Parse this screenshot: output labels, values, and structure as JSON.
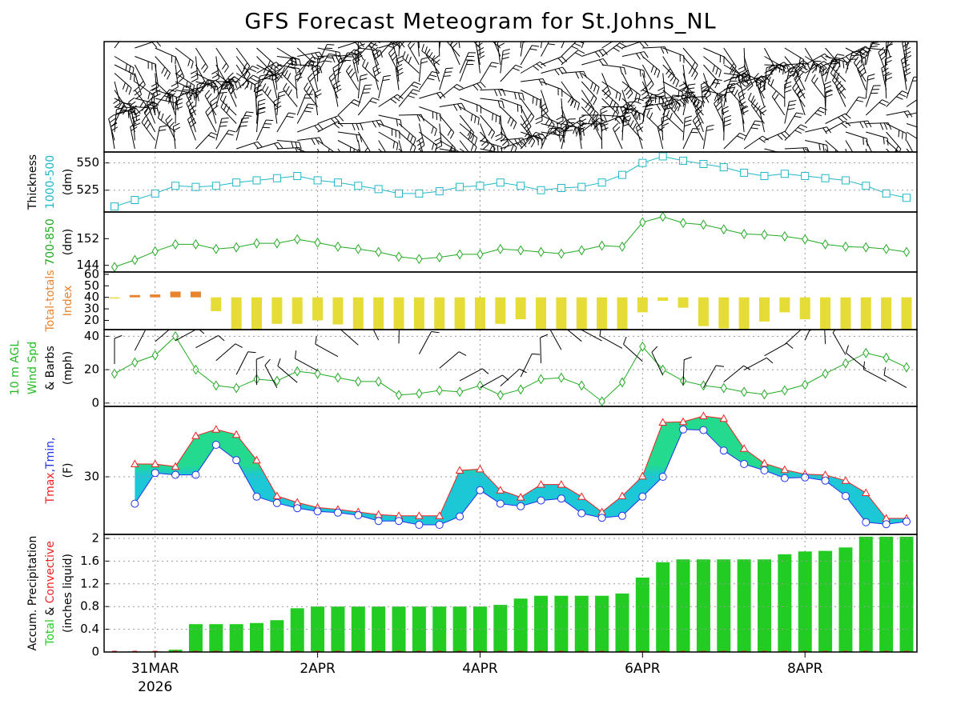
{
  "title": "GFS Forecast Meteogram for St.Johns_NL",
  "chart_data": [
    {
      "type": "line",
      "color": "#20b8c8",
      "marker": "square",
      "ylabel": [
        [
          {
            "text": "Thickness",
            "color": "#000000"
          }
        ],
        [
          {
            "text": "1000-500",
            "color": "#20b8c8"
          }
        ],
        [
          {
            "text": "(dm)",
            "color": "#000000"
          }
        ]
      ],
      "values": [
        510,
        516,
        522,
        529,
        528,
        529,
        532,
        534,
        536,
        538,
        534,
        532,
        529,
        526,
        522,
        522,
        524,
        528,
        529,
        532,
        529,
        525,
        527,
        528,
        532,
        539,
        550,
        556,
        552,
        549,
        546,
        541,
        538,
        540,
        538,
        536,
        534,
        529,
        522,
        518
      ],
      "ylim": [
        505,
        560
      ],
      "yticks": [
        525,
        550
      ],
      "grid": true
    },
    {
      "type": "line",
      "color": "#22aa22",
      "marker": "diamond",
      "ylabel": [
        [
          {
            "text": "700-850",
            "color": "#22aa22"
          }
        ],
        [
          {
            "text": "(dm)",
            "color": "#000000"
          }
        ]
      ],
      "values": [
        143.5,
        145.6,
        148.2,
        150.3,
        150.3,
        148.9,
        149.4,
        150.6,
        150.6,
        151.8,
        150.8,
        149.6,
        148.9,
        148,
        146.6,
        145.9,
        146.4,
        147.3,
        147.3,
        148.9,
        148.5,
        148,
        147.5,
        148.5,
        149.9,
        149.6,
        156.9,
        158.6,
        156.7,
        156.2,
        154.8,
        153.4,
        153.2,
        152.7,
        151.8,
        150.3,
        149.6,
        149.4,
        148.9,
        148
      ],
      "ylim": [
        142,
        160
      ],
      "yticks": [
        144,
        152
      ],
      "grid": false
    },
    {
      "type": "diverging-bar",
      "above_color": "#e8832e",
      "below_color": "#e6dc38",
      "base_color": "#999999",
      "ylabel": [
        [
          {
            "text": "Total-totals",
            "color": "#e8832e"
          }
        ],
        [
          {
            "text": "Index",
            "color": "#e8832e"
          }
        ]
      ],
      "values": [
        39,
        42,
        42.5,
        45,
        45,
        28,
        12,
        12,
        17,
        17,
        20,
        16.5,
        12,
        12,
        12,
        12,
        12,
        12,
        12,
        17,
        21,
        12,
        12,
        12,
        12,
        12,
        27,
        37,
        31,
        15,
        13,
        12,
        19,
        27,
        21,
        12,
        12,
        12,
        12,
        12
      ],
      "ylim": [
        12,
        62
      ],
      "yticks": [
        20,
        30,
        40,
        50,
        60
      ],
      "grid": false
    },
    {
      "type": "line",
      "color": "#22aa22",
      "marker": "diamond",
      "ylabel": [
        [
          {
            "text": "10 m AGL",
            "color": "#22bb22"
          }
        ],
        [
          {
            "text": "Wind Spd",
            "color": "#22bb22"
          }
        ],
        [
          {
            "text": "& Barbs",
            "color": "#000000"
          }
        ],
        [
          {
            "text": "(mph)",
            "color": "#000000"
          }
        ]
      ],
      "values": [
        17.6,
        24.3,
        28.6,
        40,
        20,
        10.5,
        9,
        14.3,
        13.3,
        19,
        17.6,
        15.2,
        12.9,
        12.9,
        4.8,
        5.7,
        7.6,
        6.7,
        10.5,
        4.8,
        8.1,
        14.3,
        15.2,
        10.5,
        1,
        12.4,
        33.8,
        20,
        13.3,
        10.5,
        9,
        6.7,
        5.2,
        7.6,
        11,
        17.6,
        23.8,
        30,
        27.1,
        21.4
      ],
      "ylim": [
        -2,
        44
      ],
      "yticks": [
        0,
        20,
        40
      ],
      "grid": true
    },
    {
      "type": "band",
      "fill_colors": [
        "#18d888",
        "#10c4d4"
      ],
      "ylabel": [
        [
          {
            "text": "Tmax",
            "color": "#ee2222"
          },
          {
            "text": ",Tmin,",
            "color": "#2233ee"
          }
        ],
        [
          {
            "text": "(F)",
            "color": "#000000"
          }
        ]
      ],
      "series": [
        {
          "color": "#ee2222",
          "marker": "triangle",
          "values": [
            null,
            32,
            32,
            31.6,
            36.4,
            37.4,
            36.6,
            32.6,
            27,
            26,
            25.2,
            24.9,
            24.5,
            24.1,
            23.9,
            23.9,
            23.9,
            31,
            31.2,
            27.9,
            26.8,
            28.8,
            28.8,
            26.9,
            24.5,
            27,
            30.1,
            38.5,
            38.6,
            39.5,
            39.1,
            34.4,
            32.1,
            31.1,
            30.4,
            30.3,
            29.4,
            27.5,
            23.5,
            23.5
          ]
        },
        {
          "color": "#2233ee",
          "marker": "circle",
          "values": [
            null,
            25.8,
            30.6,
            30.3,
            30.3,
            35,
            32.6,
            26.9,
            25.9,
            25.1,
            24.6,
            24.4,
            24,
            23.1,
            23.1,
            22.5,
            22.5,
            23.8,
            27.9,
            25.8,
            25.4,
            26.3,
            26.6,
            24.3,
            23.6,
            23.9,
            26.9,
            30,
            37.4,
            37.3,
            34.1,
            32,
            31,
            29.8,
            29.9,
            29.4,
            27,
            22.9,
            22.6,
            23
          ]
        }
      ],
      "ylim": [
        21,
        41
      ],
      "yticks": [
        30
      ],
      "grid": true
    },
    {
      "type": "bar",
      "ylabel": [
        [
          {
            "text": "Accum. Precipitation",
            "color": "#000000"
          }
        ],
        [
          {
            "text": "Total",
            "color": "#22cc22"
          },
          {
            "text": " & ",
            "color": "#000000"
          },
          {
            "text": "Convective",
            "color": "#ee2222"
          }
        ],
        [
          {
            "text": "(inches liquid)",
            "color": "#000000"
          }
        ]
      ],
      "categories": [
        null,
        null,
        "31MAR",
        null,
        null,
        null,
        null,
        null,
        null,
        null,
        "2APR",
        null,
        null,
        null,
        null,
        null,
        null,
        null,
        "4APR",
        null,
        null,
        null,
        null,
        null,
        null,
        null,
        "6APR",
        null,
        null,
        null,
        null,
        null,
        null,
        null,
        "8APR",
        null,
        null,
        null,
        null,
        null
      ],
      "x_year": "2026",
      "series": [
        {
          "color": "#22cc22",
          "values": [
            0,
            0.01,
            0.01,
            0.04,
            0.49,
            0.49,
            0.49,
            0.51,
            0.56,
            0.77,
            0.8,
            0.8,
            0.8,
            0.8,
            0.8,
            0.8,
            0.8,
            0.8,
            0.8,
            0.83,
            0.94,
            0.99,
            0.99,
            0.99,
            0.99,
            1.03,
            1.31,
            1.58,
            1.63,
            1.63,
            1.63,
            1.63,
            1.63,
            1.72,
            1.77,
            1.78,
            1.84,
            2.03,
            2.03,
            2.03
          ]
        },
        {
          "color": "#ee2222",
          "values": [
            0,
            0,
            0,
            0,
            0,
            0,
            0,
            0,
            0,
            0,
            0,
            0,
            0,
            0,
            0,
            0,
            0,
            0,
            0,
            0,
            0,
            0,
            0,
            0,
            0,
            0,
            0,
            0,
            0,
            0,
            0,
            0,
            0,
            0,
            0,
            0,
            0,
            0,
            0,
            0
          ]
        }
      ],
      "ylim": [
        0,
        2.07
      ],
      "yticks": [
        0,
        0.4,
        0.8,
        1.2,
        1.6,
        2
      ],
      "grid": true
    }
  ]
}
